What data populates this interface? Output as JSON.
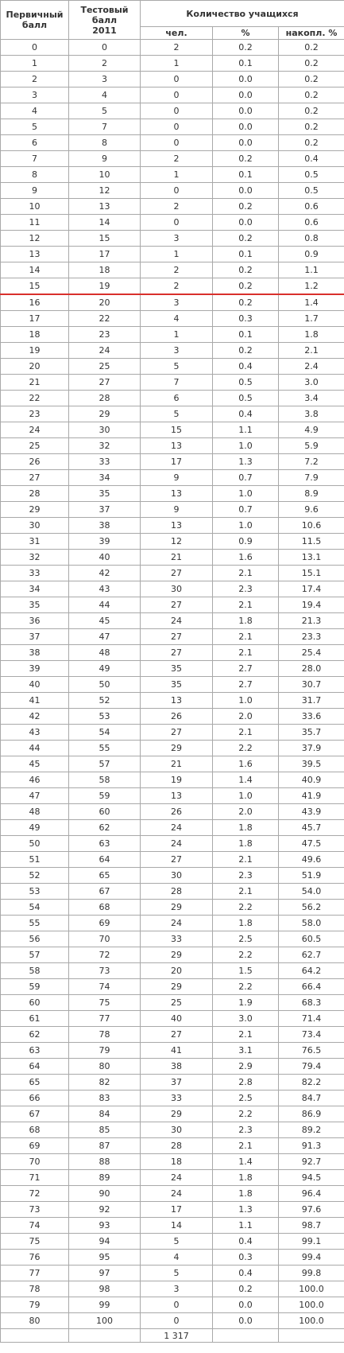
{
  "headers": {
    "primary_line1": "Первичный",
    "primary_line2": "балл",
    "test_line1": "Тестовый балл",
    "test_line2": "2011",
    "students": "Количество учащихся",
    "count": "чел.",
    "percent": "%",
    "cumulative": "накопл. %"
  },
  "cutoff_after_primary": "15",
  "rows": [
    [
      "0",
      "0",
      "2",
      "0.2",
      "0.2"
    ],
    [
      "1",
      "2",
      "1",
      "0.1",
      "0.2"
    ],
    [
      "2",
      "3",
      "0",
      "0.0",
      "0.2"
    ],
    [
      "3",
      "4",
      "0",
      "0.0",
      "0.2"
    ],
    [
      "4",
      "5",
      "0",
      "0.0",
      "0.2"
    ],
    [
      "5",
      "7",
      "0",
      "0.0",
      "0.2"
    ],
    [
      "6",
      "8",
      "0",
      "0.0",
      "0.2"
    ],
    [
      "7",
      "9",
      "2",
      "0.2",
      "0.4"
    ],
    [
      "8",
      "10",
      "1",
      "0.1",
      "0.5"
    ],
    [
      "9",
      "12",
      "0",
      "0.0",
      "0.5"
    ],
    [
      "10",
      "13",
      "2",
      "0.2",
      "0.6"
    ],
    [
      "11",
      "14",
      "0",
      "0.0",
      "0.6"
    ],
    [
      "12",
      "15",
      "3",
      "0.2",
      "0.8"
    ],
    [
      "13",
      "17",
      "1",
      "0.1",
      "0.9"
    ],
    [
      "14",
      "18",
      "2",
      "0.2",
      "1.1"
    ],
    [
      "15",
      "19",
      "2",
      "0.2",
      "1.2"
    ],
    [
      "16",
      "20",
      "3",
      "0.2",
      "1.4"
    ],
    [
      "17",
      "22",
      "4",
      "0.3",
      "1.7"
    ],
    [
      "18",
      "23",
      "1",
      "0.1",
      "1.8"
    ],
    [
      "19",
      "24",
      "3",
      "0.2",
      "2.1"
    ],
    [
      "20",
      "25",
      "5",
      "0.4",
      "2.4"
    ],
    [
      "21",
      "27",
      "7",
      "0.5",
      "3.0"
    ],
    [
      "22",
      "28",
      "6",
      "0.5",
      "3.4"
    ],
    [
      "23",
      "29",
      "5",
      "0.4",
      "3.8"
    ],
    [
      "24",
      "30",
      "15",
      "1.1",
      "4.9"
    ],
    [
      "25",
      "32",
      "13",
      "1.0",
      "5.9"
    ],
    [
      "26",
      "33",
      "17",
      "1.3",
      "7.2"
    ],
    [
      "27",
      "34",
      "9",
      "0.7",
      "7.9"
    ],
    [
      "28",
      "35",
      "13",
      "1.0",
      "8.9"
    ],
    [
      "29",
      "37",
      "9",
      "0.7",
      "9.6"
    ],
    [
      "30",
      "38",
      "13",
      "1.0",
      "10.6"
    ],
    [
      "31",
      "39",
      "12",
      "0.9",
      "11.5"
    ],
    [
      "32",
      "40",
      "21",
      "1.6",
      "13.1"
    ],
    [
      "33",
      "42",
      "27",
      "2.1",
      "15.1"
    ],
    [
      "34",
      "43",
      "30",
      "2.3",
      "17.4"
    ],
    [
      "35",
      "44",
      "27",
      "2.1",
      "19.4"
    ],
    [
      "36",
      "45",
      "24",
      "1.8",
      "21.3"
    ],
    [
      "37",
      "47",
      "27",
      "2.1",
      "23.3"
    ],
    [
      "38",
      "48",
      "27",
      "2.1",
      "25.4"
    ],
    [
      "39",
      "49",
      "35",
      "2.7",
      "28.0"
    ],
    [
      "40",
      "50",
      "35",
      "2.7",
      "30.7"
    ],
    [
      "41",
      "52",
      "13",
      "1.0",
      "31.7"
    ],
    [
      "42",
      "53",
      "26",
      "2.0",
      "33.6"
    ],
    [
      "43",
      "54",
      "27",
      "2.1",
      "35.7"
    ],
    [
      "44",
      "55",
      "29",
      "2.2",
      "37.9"
    ],
    [
      "45",
      "57",
      "21",
      "1.6",
      "39.5"
    ],
    [
      "46",
      "58",
      "19",
      "1.4",
      "40.9"
    ],
    [
      "47",
      "59",
      "13",
      "1.0",
      "41.9"
    ],
    [
      "48",
      "60",
      "26",
      "2.0",
      "43.9"
    ],
    [
      "49",
      "62",
      "24",
      "1.8",
      "45.7"
    ],
    [
      "50",
      "63",
      "24",
      "1.8",
      "47.5"
    ],
    [
      "51",
      "64",
      "27",
      "2.1",
      "49.6"
    ],
    [
      "52",
      "65",
      "30",
      "2.3",
      "51.9"
    ],
    [
      "53",
      "67",
      "28",
      "2.1",
      "54.0"
    ],
    [
      "54",
      "68",
      "29",
      "2.2",
      "56.2"
    ],
    [
      "55",
      "69",
      "24",
      "1.8",
      "58.0"
    ],
    [
      "56",
      "70",
      "33",
      "2.5",
      "60.5"
    ],
    [
      "57",
      "72",
      "29",
      "2.2",
      "62.7"
    ],
    [
      "58",
      "73",
      "20",
      "1.5",
      "64.2"
    ],
    [
      "59",
      "74",
      "29",
      "2.2",
      "66.4"
    ],
    [
      "60",
      "75",
      "25",
      "1.9",
      "68.3"
    ],
    [
      "61",
      "77",
      "40",
      "3.0",
      "71.4"
    ],
    [
      "62",
      "78",
      "27",
      "2.1",
      "73.4"
    ],
    [
      "63",
      "79",
      "41",
      "3.1",
      "76.5"
    ],
    [
      "64",
      "80",
      "38",
      "2.9",
      "79.4"
    ],
    [
      "65",
      "82",
      "37",
      "2.8",
      "82.2"
    ],
    [
      "66",
      "83",
      "33",
      "2.5",
      "84.7"
    ],
    [
      "67",
      "84",
      "29",
      "2.2",
      "86.9"
    ],
    [
      "68",
      "85",
      "30",
      "2.3",
      "89.2"
    ],
    [
      "69",
      "87",
      "28",
      "2.1",
      "91.3"
    ],
    [
      "70",
      "88",
      "18",
      "1.4",
      "92.7"
    ],
    [
      "71",
      "89",
      "24",
      "1.8",
      "94.5"
    ],
    [
      "72",
      "90",
      "24",
      "1.8",
      "96.4"
    ],
    [
      "73",
      "92",
      "17",
      "1.3",
      "97.6"
    ],
    [
      "74",
      "93",
      "14",
      "1.1",
      "98.7"
    ],
    [
      "75",
      "94",
      "5",
      "0.4",
      "99.1"
    ],
    [
      "76",
      "95",
      "4",
      "0.3",
      "99.4"
    ],
    [
      "77",
      "97",
      "5",
      "0.4",
      "99.8"
    ],
    [
      "78",
      "98",
      "3",
      "0.2",
      "100.0"
    ],
    [
      "79",
      "99",
      "0",
      "0.0",
      "100.0"
    ],
    [
      "80",
      "100",
      "0",
      "0.0",
      "100.0"
    ]
  ],
  "total": [
    "",
    "",
    "1 317",
    "",
    ""
  ],
  "colors": {
    "cutoff_line": "#d9302c",
    "border": "#a9a9a9"
  }
}
